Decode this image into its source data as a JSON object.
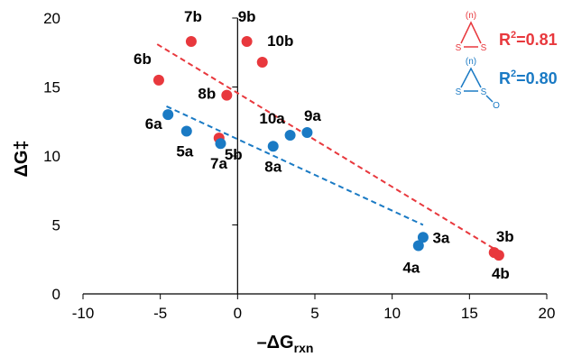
{
  "chart_data": {
    "type": "scatter",
    "title": "",
    "xlabel": "–ΔG",
    "xlabel_sub": "rxn",
    "ylabel": "ΔG‡",
    "xlim": [
      -10,
      20
    ],
    "ylim": [
      0,
      20
    ],
    "xticks": [
      "-10",
      "-5",
      "0",
      "5",
      "10",
      "15",
      "20"
    ],
    "yticks": [
      "0",
      "5",
      "10",
      "15",
      "20"
    ],
    "grid": false,
    "colors": {
      "b": "#e8383d",
      "a": "#1a7ac4"
    },
    "legend": {
      "b": {
        "r2_base": "R",
        "r2_exp": "2",
        "r2_value": "=0.81",
        "ring_label": "(n)",
        "atom_left": "S",
        "atom_right": "S"
      },
      "a": {
        "r2_base": "R",
        "r2_exp": "2",
        "r2_value": "=0.80",
        "ring_label": "(n)",
        "atom_left": "S",
        "atom_right": "S",
        "atom_oxygen": "O"
      }
    },
    "series": [
      {
        "key": "b",
        "points": [
          {
            "label": "6b",
            "x": -5.1,
            "y": 15.5
          },
          {
            "label": "7b",
            "x": -3.0,
            "y": 18.3
          },
          {
            "label": "9b",
            "x": 0.6,
            "y": 18.3
          },
          {
            "label": "10b",
            "x": 1.6,
            "y": 16.8
          },
          {
            "label": "8b",
            "x": -0.7,
            "y": 14.4
          },
          {
            "label": "5b",
            "x": -1.2,
            "y": 11.3
          },
          {
            "label": "3b",
            "x": 16.6,
            "y": 3.0
          },
          {
            "label": "4b",
            "x": 16.9,
            "y": 2.8
          }
        ],
        "trend": {
          "x1": -5.2,
          "y1": 18.1,
          "x2": 17.0,
          "y2": 3.0
        }
      },
      {
        "key": "a",
        "points": [
          {
            "label": "6a",
            "x": -4.5,
            "y": 13.0
          },
          {
            "label": "5a",
            "x": -3.3,
            "y": 11.8
          },
          {
            "label": "7a",
            "x": -1.1,
            "y": 10.9
          },
          {
            "label": "8a",
            "x": 2.3,
            "y": 10.7
          },
          {
            "label": "10a",
            "x": 3.4,
            "y": 11.5
          },
          {
            "label": "9a",
            "x": 4.5,
            "y": 11.7
          },
          {
            "label": "3a",
            "x": 12.0,
            "y": 4.1
          },
          {
            "label": "4a",
            "x": 11.7,
            "y": 3.5
          }
        ],
        "trend": {
          "x1": -4.6,
          "y1": 13.6,
          "x2": 12.0,
          "y2": 5.0
        }
      }
    ]
  }
}
